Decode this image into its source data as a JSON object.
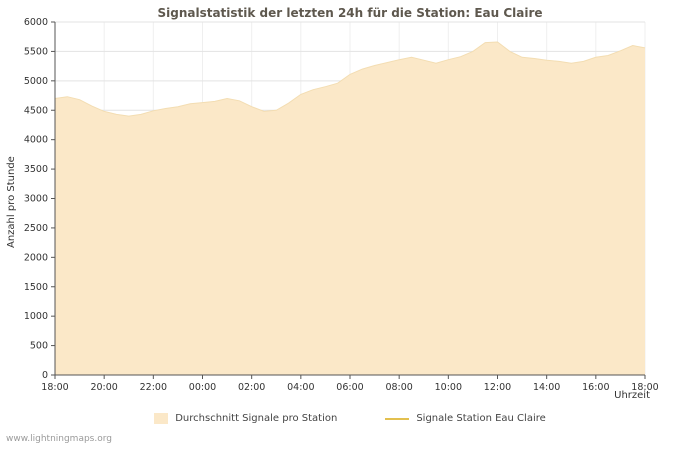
{
  "title": "Signalstatistik der letzten 24h für die Station: Eau Claire",
  "watermark": "www.lightningmaps.org",
  "axes": {
    "y_label": "Anzahl pro Stunde",
    "x_label": "Uhrzeit"
  },
  "legend": [
    {
      "label": "Durchschnitt Signale pro Station",
      "type": "area",
      "color": "#fbe8c8",
      "edge_color": "#f3ddb2"
    },
    {
      "label": "Signale Station Eau Claire",
      "type": "line",
      "color": "#e3c04f"
    }
  ],
  "chart_data": {
    "type": "area",
    "title": "Signalstatistik der letzten 24h für die Station: Eau Claire",
    "xlabel": "Uhrzeit",
    "ylabel": "Anzahl pro Stunde",
    "ylim": [
      0,
      6000
    ],
    "grid": true,
    "y_ticks": [
      0,
      500,
      1000,
      1500,
      2000,
      2500,
      3000,
      3500,
      4000,
      4500,
      5000,
      5500,
      6000
    ],
    "x_ticks": [
      "18:00",
      "20:00",
      "22:00",
      "00:00",
      "02:00",
      "04:00",
      "06:00",
      "08:00",
      "10:00",
      "12:00",
      "14:00",
      "16:00",
      "18:00"
    ],
    "x": [
      "18:00",
      "18:30",
      "19:00",
      "19:30",
      "20:00",
      "20:30",
      "21:00",
      "21:30",
      "22:00",
      "22:30",
      "23:00",
      "23:30",
      "00:00",
      "00:30",
      "01:00",
      "01:30",
      "02:00",
      "02:30",
      "03:00",
      "03:30",
      "04:00",
      "04:30",
      "05:00",
      "05:30",
      "06:00",
      "06:30",
      "07:00",
      "07:30",
      "08:00",
      "08:30",
      "09:00",
      "09:30",
      "10:00",
      "10:30",
      "11:00",
      "11:30",
      "12:00",
      "12:30",
      "13:00",
      "13:30",
      "14:00",
      "14:30",
      "15:00",
      "15:30",
      "16:00",
      "16:30",
      "17:00",
      "17:30",
      "18:00"
    ],
    "series": [
      {
        "name": "Durchschnitt Signale pro Station",
        "color": "#fbe8c8",
        "values": [
          4700,
          4730,
          4680,
          4570,
          4480,
          4430,
          4400,
          4430,
          4490,
          4530,
          4560,
          4610,
          4630,
          4650,
          4700,
          4660,
          4560,
          4480,
          4500,
          4620,
          4770,
          4850,
          4900,
          4960,
          5110,
          5200,
          5260,
          5310,
          5360,
          5400,
          5350,
          5300,
          5360,
          5410,
          5500,
          5650,
          5660,
          5500,
          5400,
          5380,
          5350,
          5330,
          5300,
          5330,
          5400,
          5430,
          5510,
          5600,
          5560
        ]
      }
    ],
    "legend_position": "bottom"
  }
}
